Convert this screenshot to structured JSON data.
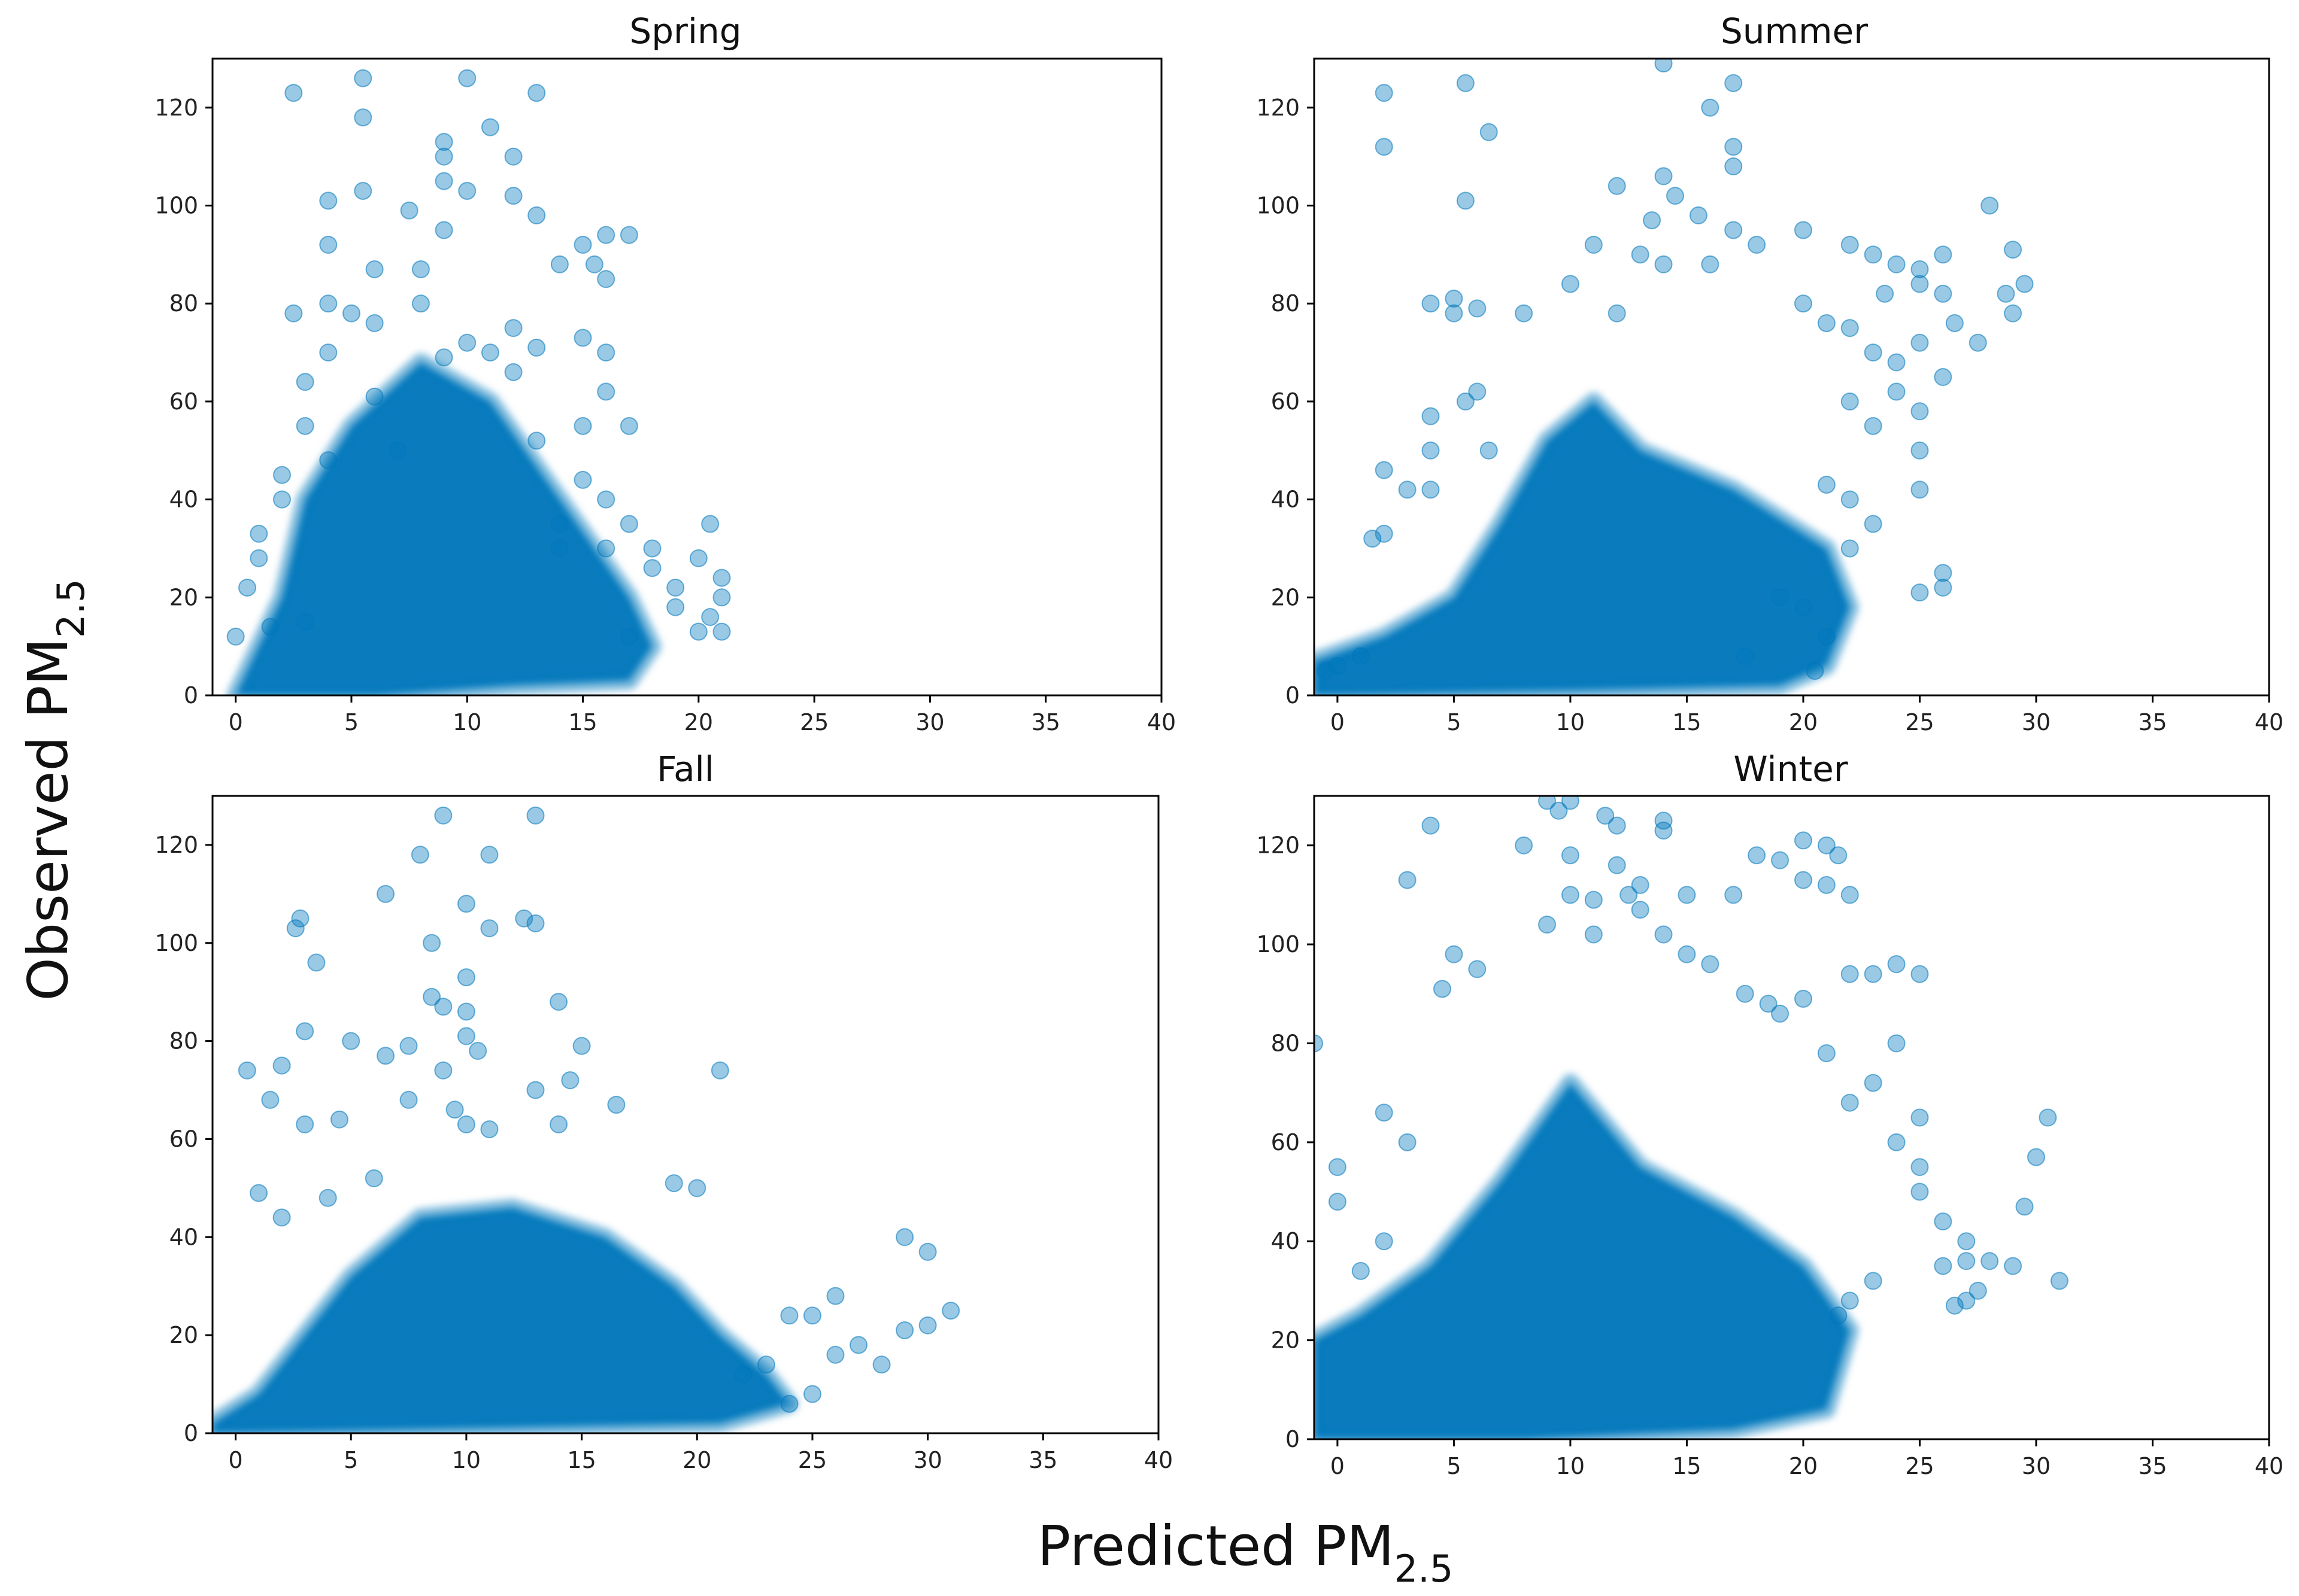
{
  "figure": {
    "xlabel": "Predicted PM",
    "xlabel_sub": "2.5",
    "ylabel": "Observed PM",
    "ylabel_sub": "2.5"
  },
  "style": {
    "marker_color": "#0077bb",
    "marker_opacity": 0.4
  },
  "chart_data": [
    {
      "type": "scatter",
      "title": "Spring",
      "xlim": [
        -1,
        40
      ],
      "ylim": [
        0,
        130
      ],
      "xticks": [
        0,
        5,
        10,
        15,
        20,
        25,
        30,
        35,
        40
      ],
      "yticks": [
        0,
        20,
        40,
        60,
        80,
        100,
        120
      ],
      "density_region": [
        [
          0,
          0
        ],
        [
          2,
          20
        ],
        [
          3,
          40
        ],
        [
          5,
          55
        ],
        [
          8,
          68
        ],
        [
          11,
          60
        ],
        [
          14,
          40
        ],
        [
          17,
          20
        ],
        [
          18,
          10
        ],
        [
          17,
          3
        ],
        [
          12,
          2
        ],
        [
          6,
          0
        ]
      ],
      "points": [
        [
          2.5,
          123
        ],
        [
          5.5,
          126
        ],
        [
          10,
          126
        ],
        [
          13,
          123
        ],
        [
          5.5,
          118
        ],
        [
          11,
          116
        ],
        [
          9,
          113
        ],
        [
          9,
          110
        ],
        [
          12,
          110
        ],
        [
          9,
          105
        ],
        [
          10,
          103
        ],
        [
          4,
          101
        ],
        [
          5.5,
          103
        ],
        [
          12,
          102
        ],
        [
          13,
          98
        ],
        [
          7.5,
          99
        ],
        [
          16,
          94
        ],
        [
          17,
          94
        ],
        [
          4,
          92
        ],
        [
          9,
          95
        ],
        [
          15,
          92
        ],
        [
          15.5,
          88
        ],
        [
          16,
          85
        ],
        [
          6,
          87
        ],
        [
          8,
          87
        ],
        [
          2.5,
          78
        ],
        [
          4,
          80
        ],
        [
          5,
          78
        ],
        [
          8,
          80
        ],
        [
          14,
          88
        ],
        [
          15,
          73
        ],
        [
          16,
          70
        ],
        [
          4,
          70
        ],
        [
          3,
          64
        ],
        [
          12,
          75
        ],
        [
          13,
          71
        ],
        [
          3,
          55
        ],
        [
          2,
          45
        ],
        [
          16,
          62
        ],
        [
          15,
          55
        ],
        [
          17,
          55
        ],
        [
          15,
          44
        ],
        [
          16,
          40
        ],
        [
          17,
          35
        ],
        [
          14,
          35
        ],
        [
          20,
          28
        ],
        [
          21,
          24
        ],
        [
          20.5,
          35
        ],
        [
          19,
          22
        ],
        [
          20,
          13
        ],
        [
          21,
          13
        ],
        [
          18,
          26
        ],
        [
          19,
          18
        ],
        [
          17,
          12
        ],
        [
          16,
          30
        ],
        [
          3,
          15
        ],
        [
          1,
          28
        ],
        [
          0,
          12
        ],
        [
          1,
          33
        ],
        [
          2,
          40
        ],
        [
          12,
          66
        ],
        [
          11,
          70
        ],
        [
          6,
          61
        ],
        [
          7,
          50
        ],
        [
          4,
          48
        ],
        [
          13,
          52
        ],
        [
          14,
          30
        ],
        [
          10,
          72
        ],
        [
          9,
          69
        ],
        [
          6,
          76
        ],
        [
          18,
          30
        ],
        [
          21,
          20
        ],
        [
          20.5,
          16
        ],
        [
          0.5,
          22
        ],
        [
          1.5,
          14
        ]
      ]
    },
    {
      "type": "scatter",
      "title": "Summer",
      "xlim": [
        -1,
        40
      ],
      "ylim": [
        0,
        130
      ],
      "xticks": [
        0,
        5,
        10,
        15,
        20,
        25,
        30,
        35,
        40
      ],
      "yticks": [
        0,
        20,
        40,
        60,
        80,
        100,
        120
      ],
      "density_region": [
        [
          -1,
          0
        ],
        [
          -1,
          7
        ],
        [
          2,
          12
        ],
        [
          5,
          20
        ],
        [
          7,
          35
        ],
        [
          9,
          52
        ],
        [
          11,
          60
        ],
        [
          13,
          50
        ],
        [
          17,
          42
        ],
        [
          21,
          30
        ],
        [
          22,
          18
        ],
        [
          21,
          6
        ],
        [
          19,
          2
        ],
        [
          10,
          1
        ]
      ],
      "points": [
        [
          2,
          123
        ],
        [
          2,
          112
        ],
        [
          5.5,
          125
        ],
        [
          6.5,
          115
        ],
        [
          5.5,
          101
        ],
        [
          14,
          129
        ],
        [
          17,
          125
        ],
        [
          16,
          120
        ],
        [
          17,
          112
        ],
        [
          17,
          108
        ],
        [
          14,
          106
        ],
        [
          12,
          104
        ],
        [
          14.5,
          102
        ],
        [
          15.5,
          98
        ],
        [
          13.5,
          97
        ],
        [
          17,
          95
        ],
        [
          11,
          92
        ],
        [
          13,
          90
        ],
        [
          14,
          88
        ],
        [
          16,
          88
        ],
        [
          18,
          92
        ],
        [
          20,
          95
        ],
        [
          22,
          92
        ],
        [
          23,
          90
        ],
        [
          24,
          88
        ],
        [
          25,
          87
        ],
        [
          26,
          90
        ],
        [
          25,
          84
        ],
        [
          26,
          82
        ],
        [
          23.5,
          82
        ],
        [
          28,
          100
        ],
        [
          29,
          91
        ],
        [
          29.5,
          84
        ],
        [
          28.7,
          82
        ],
        [
          29,
          78
        ],
        [
          26.5,
          76
        ],
        [
          25,
          72
        ],
        [
          27.5,
          72
        ],
        [
          22,
          75
        ],
        [
          23,
          70
        ],
        [
          24,
          68
        ],
        [
          20,
          80
        ],
        [
          21,
          76
        ],
        [
          10,
          84
        ],
        [
          12,
          78
        ],
        [
          8,
          78
        ],
        [
          5,
          78
        ],
        [
          4,
          80
        ],
        [
          5,
          81
        ],
        [
          6,
          79
        ],
        [
          5.5,
          60
        ],
        [
          6,
          62
        ],
        [
          4,
          57
        ],
        [
          4,
          50
        ],
        [
          6.5,
          50
        ],
        [
          3,
          42
        ],
        [
          4,
          42
        ],
        [
          2,
          46
        ],
        [
          2,
          33
        ],
        [
          1.5,
          32
        ],
        [
          22,
          60
        ],
        [
          23,
          55
        ],
        [
          24,
          62
        ],
        [
          25,
          58
        ],
        [
          26,
          65
        ],
        [
          25,
          50
        ],
        [
          25,
          42
        ],
        [
          26,
          25
        ],
        [
          26,
          22
        ],
        [
          25,
          21
        ],
        [
          23,
          35
        ],
        [
          22,
          40
        ],
        [
          21,
          43
        ],
        [
          22,
          30
        ],
        [
          20,
          18
        ],
        [
          21,
          12
        ],
        [
          20.5,
          5
        ],
        [
          19,
          20
        ],
        [
          17.5,
          8
        ],
        [
          1,
          8
        ],
        [
          0,
          6
        ],
        [
          -0.5,
          5
        ]
      ]
    },
    {
      "type": "scatter",
      "title": "Fall",
      "xlim": [
        -1,
        40
      ],
      "ylim": [
        0,
        130
      ],
      "xticks": [
        0,
        5,
        10,
        15,
        20,
        25,
        30,
        35,
        40
      ],
      "yticks": [
        0,
        20,
        40,
        60,
        80,
        100,
        120
      ],
      "density_region": [
        [
          -1,
          0
        ],
        [
          -1,
          2
        ],
        [
          1,
          8
        ],
        [
          3,
          20
        ],
        [
          5,
          32
        ],
        [
          8,
          44
        ],
        [
          12,
          46
        ],
        [
          16,
          40
        ],
        [
          19,
          30
        ],
        [
          21,
          20
        ],
        [
          23,
          12
        ],
        [
          24,
          6
        ],
        [
          21,
          2
        ],
        [
          10,
          1
        ]
      ],
      "points": [
        [
          9,
          126
        ],
        [
          13,
          126
        ],
        [
          8,
          118
        ],
        [
          11,
          118
        ],
        [
          6.5,
          110
        ],
        [
          10,
          108
        ],
        [
          11,
          103
        ],
        [
          12.5,
          105
        ],
        [
          13,
          104
        ],
        [
          2.8,
          105
        ],
        [
          2.6,
          103
        ],
        [
          8.5,
          100
        ],
        [
          3.5,
          96
        ],
        [
          10,
          93
        ],
        [
          8.5,
          89
        ],
        [
          9,
          87
        ],
        [
          10,
          86
        ],
        [
          14,
          88
        ],
        [
          3,
          82
        ],
        [
          2,
          75
        ],
        [
          0.5,
          74
        ],
        [
          5,
          80
        ],
        [
          6.5,
          77
        ],
        [
          7.5,
          79
        ],
        [
          10,
          81
        ],
        [
          10.5,
          78
        ],
        [
          15,
          79
        ],
        [
          9,
          74
        ],
        [
          14.5,
          72
        ],
        [
          21,
          74
        ],
        [
          1.5,
          68
        ],
        [
          4.5,
          64
        ],
        [
          3,
          63
        ],
        [
          7.5,
          68
        ],
        [
          9.5,
          66
        ],
        [
          13,
          70
        ],
        [
          16.5,
          67
        ],
        [
          10,
          63
        ],
        [
          11,
          62
        ],
        [
          14,
          63
        ],
        [
          1,
          49
        ],
        [
          2,
          44
        ],
        [
          4,
          48
        ],
        [
          6,
          52
        ],
        [
          19,
          51
        ],
        [
          20,
          50
        ],
        [
          29,
          40
        ],
        [
          30,
          37
        ],
        [
          30,
          22
        ],
        [
          31,
          25
        ],
        [
          28,
          14
        ],
        [
          29,
          21
        ],
        [
          27,
          18
        ],
        [
          26,
          28
        ],
        [
          25,
          24
        ],
        [
          24,
          24
        ],
        [
          26,
          16
        ],
        [
          25,
          8
        ],
        [
          24,
          6
        ],
        [
          22,
          12
        ],
        [
          23,
          14
        ]
      ]
    },
    {
      "type": "scatter",
      "title": "Winter",
      "xlim": [
        -1,
        40
      ],
      "ylim": [
        0,
        130
      ],
      "xticks": [
        0,
        5,
        10,
        15,
        20,
        25,
        30,
        35,
        40
      ],
      "yticks": [
        0,
        20,
        40,
        60,
        80,
        100,
        120
      ],
      "density_region": [
        [
          -1,
          0
        ],
        [
          -1,
          20
        ],
        [
          1,
          25
        ],
        [
          4,
          35
        ],
        [
          7,
          52
        ],
        [
          10,
          72
        ],
        [
          13,
          55
        ],
        [
          17,
          45
        ],
        [
          20,
          35
        ],
        [
          22,
          22
        ],
        [
          21,
          6
        ],
        [
          17,
          2
        ],
        [
          8,
          0
        ]
      ],
      "points": [
        [
          9,
          129
        ],
        [
          10,
          129
        ],
        [
          11.5,
          126
        ],
        [
          14,
          125
        ],
        [
          14,
          123
        ],
        [
          12,
          124
        ],
        [
          9.5,
          127
        ],
        [
          4,
          124
        ],
        [
          8,
          120
        ],
        [
          10,
          118
        ],
        [
          12,
          116
        ],
        [
          13,
          112
        ],
        [
          15,
          110
        ],
        [
          17,
          110
        ],
        [
          3,
          113
        ],
        [
          10,
          110
        ],
        [
          11,
          109
        ],
        [
          12.5,
          110
        ],
        [
          13,
          107
        ],
        [
          9,
          104
        ],
        [
          11,
          102
        ],
        [
          14,
          102
        ],
        [
          15,
          98
        ],
        [
          16,
          96
        ],
        [
          18,
          118
        ],
        [
          19,
          117
        ],
        [
          20,
          121
        ],
        [
          21,
          120
        ],
        [
          21.5,
          118
        ],
        [
          20,
          113
        ],
        [
          21,
          112
        ],
        [
          22,
          110
        ],
        [
          17.5,
          90
        ],
        [
          18.5,
          88
        ],
        [
          19,
          86
        ],
        [
          20,
          89
        ],
        [
          22,
          94
        ],
        [
          23,
          94
        ],
        [
          24,
          96
        ],
        [
          25,
          94
        ],
        [
          5,
          98
        ],
        [
          6,
          95
        ],
        [
          4.5,
          91
        ],
        [
          24,
          80
        ],
        [
          23,
          72
        ],
        [
          25,
          65
        ],
        [
          24,
          60
        ],
        [
          25,
          55
        ],
        [
          22,
          68
        ],
        [
          21,
          78
        ],
        [
          25,
          50
        ],
        [
          26,
          44
        ],
        [
          27,
          40
        ],
        [
          26,
          35
        ],
        [
          27,
          36
        ],
        [
          28,
          36
        ],
        [
          29,
          35
        ],
        [
          27.5,
          30
        ],
        [
          27,
          28
        ],
        [
          26.5,
          27
        ],
        [
          30,
          57
        ],
        [
          30.5,
          65
        ],
        [
          31,
          32
        ],
        [
          29.5,
          47
        ],
        [
          2,
          66
        ],
        [
          3,
          60
        ],
        [
          0,
          55
        ],
        [
          0,
          48
        ],
        [
          2,
          40
        ],
        [
          -1,
          80
        ],
        [
          1,
          34
        ],
        [
          23,
          32
        ],
        [
          22,
          28
        ],
        [
          21.5,
          25
        ]
      ]
    }
  ]
}
